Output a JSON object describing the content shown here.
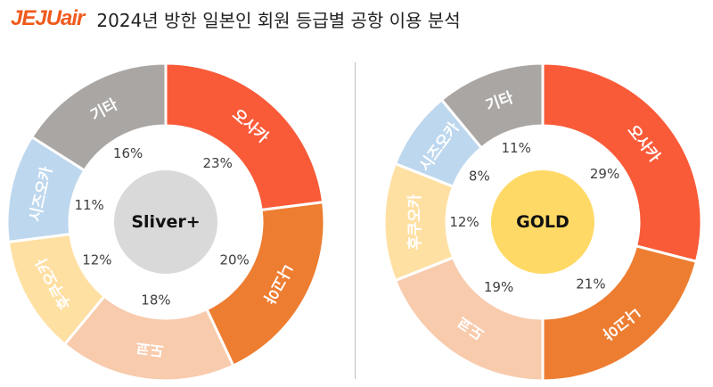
{
  "header": {
    "logo": "JEJUair",
    "title": "2024년 방한 일본인 회원 등급별 공항 이용 분석"
  },
  "colors": {
    "오사카": "#f95a38",
    "나고야": "#ed7d31",
    "도쿄": "#f8cbad",
    "후쿠오카": "#ffe0a3",
    "시즈오카": "#bdd7ee",
    "기타": "#aaa6a3"
  },
  "chart_data": [
    {
      "type": "pie",
      "center_label": "Sliver+",
      "center_color": "#d9d9d9",
      "categories": [
        "오사카",
        "나고야",
        "도쿄",
        "후쿠오카",
        "시즈오카",
        "기타"
      ],
      "values": [
        23,
        20,
        18,
        12,
        11,
        16
      ],
      "labels": [
        "23%",
        "20%",
        "18%",
        "12%",
        "11%",
        "16%"
      ]
    },
    {
      "type": "pie",
      "center_label": "GOLD",
      "center_color": "#ffd966",
      "categories": [
        "오사카",
        "나고야",
        "도쿄",
        "후쿠오카",
        "시즈오카",
        "기타"
      ],
      "values": [
        29,
        21,
        19,
        12,
        8,
        11
      ],
      "labels": [
        "29%",
        "21%",
        "19%",
        "12%",
        "8%",
        "11%"
      ]
    }
  ]
}
